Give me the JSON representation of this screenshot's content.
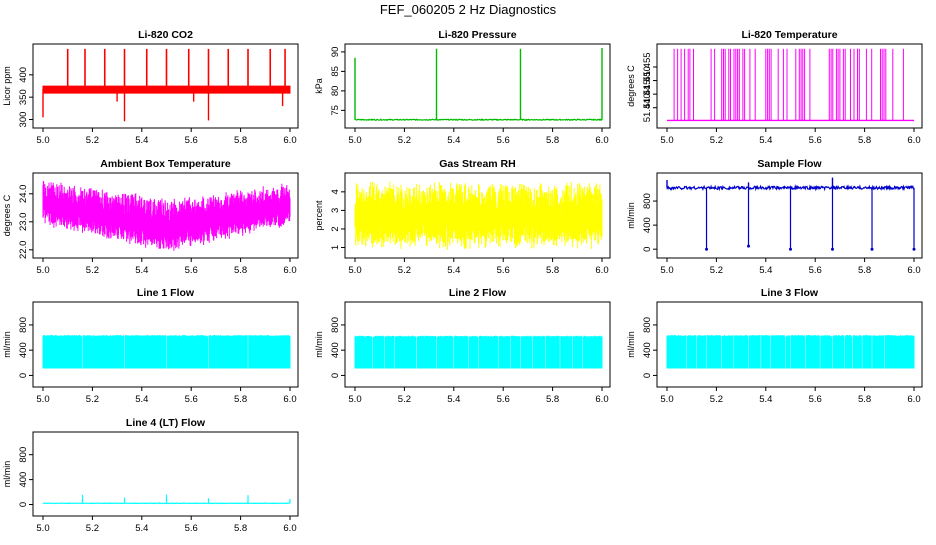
{
  "page": {
    "title": "FEF_060205  2 Hz Diagnostics"
  },
  "chart_data": [
    {
      "type": "line",
      "title": "Li-820 CO2",
      "ylabel": "Licor ppm",
      "color": "#ff0000",
      "xlim": [
        5.0,
        6.0
      ],
      "ylim": [
        290,
        460
      ],
      "xticks": [
        "5.0",
        "5.2",
        "5.4",
        "5.6",
        "5.8",
        "6.0"
      ],
      "yticks": [
        {
          "v": 300,
          "label": "300"
        },
        {
          "v": 350,
          "label": "350"
        },
        {
          "v": 400,
          "label": "400"
        }
      ],
      "series": [
        {
          "name": "CO2",
          "baseline": 368,
          "noise": 3,
          "band": [
            358,
            376
          ],
          "up_spikes": [
            5.1,
            5.17,
            5.25,
            5.33,
            5.42,
            5.5,
            5.59,
            5.67,
            5.75,
            5.83,
            5.92,
            5.98
          ],
          "up_peak": 458,
          "down_spikes": [
            {
              "x": 5.0,
              "v": 305
            },
            {
              "x": 5.33,
              "v": 296
            },
            {
              "x": 5.67,
              "v": 298
            },
            {
              "x": 5.97,
              "v": 330
            },
            {
              "x": 5.3,
              "v": 340
            },
            {
              "x": 5.61,
              "v": 340
            }
          ]
        }
      ]
    },
    {
      "type": "line",
      "title": "Li-820 Pressure",
      "ylabel": "kPa",
      "color": "#00bb00",
      "xlim": [
        5.0,
        6.0
      ],
      "ylim": [
        71.5,
        91
      ],
      "xticks": [
        "5.0",
        "5.2",
        "5.4",
        "5.6",
        "5.8",
        "6.0"
      ],
      "yticks": [
        {
          "v": 75,
          "label": "75"
        },
        {
          "v": 80,
          "label": "80"
        },
        {
          "v": 85,
          "label": "85"
        },
        {
          "v": 90,
          "label": "90"
        }
      ],
      "series": [
        {
          "name": "Pressure",
          "baseline": 72.6,
          "noise": 0.12,
          "up_spikes": [
            {
              "x": 5.0,
              "v": 88.5
            },
            {
              "x": 5.33,
              "v": 90.8
            },
            {
              "x": 5.67,
              "v": 90.8
            },
            {
              "x": 6.0,
              "v": 91
            }
          ]
        }
      ]
    },
    {
      "type": "line",
      "title": "Li-820 Temperature",
      "ylabel": "degrees C",
      "color": "#ff00ff",
      "xlim": [
        5.0,
        6.0
      ],
      "ylim": [
        51.434,
        51.462
      ],
      "xticks": [
        "5.0",
        "5.2",
        "5.4",
        "5.6",
        "5.8",
        "6.0"
      ],
      "yticks": [
        {
          "v": 51.44,
          "label": "51.440"
        },
        {
          "v": 51.445,
          "label": "51.445"
        },
        {
          "v": 51.45,
          "label": "51.450"
        },
        {
          "v": 51.455,
          "label": "51.455"
        }
      ],
      "series": [
        {
          "name": "Temperature",
          "low": 51.4353,
          "high": 51.4617
        }
      ]
    },
    {
      "type": "line",
      "title": "Ambient Box Temperature",
      "ylabel": "degrees C",
      "color": "#ff00ff",
      "xlim": [
        5.0,
        6.0
      ],
      "ylim": [
        21.85,
        24.6
      ],
      "xticks": [
        "5.0",
        "5.2",
        "5.4",
        "5.6",
        "5.8",
        "6.0"
      ],
      "yticks": [
        {
          "v": 22.0,
          "label": "22.0"
        },
        {
          "v": 23.0,
          "label": "23.0"
        },
        {
          "v": 24.0,
          "label": "24.0"
        }
      ],
      "series": [
        {
          "name": "Box temp",
          "upper_start": 24.5,
          "upper_mid": 23.75,
          "upper_end": 24.3,
          "lower_start": 23.0,
          "lower_mid": 22.0,
          "lower_end": 23.0
        }
      ]
    },
    {
      "type": "line",
      "title": "Gas Stream RH",
      "ylabel": "percent",
      "color": "#ffff00",
      "xlim": [
        5.0,
        6.0
      ],
      "ylim": [
        0.65,
        4.8
      ],
      "xticks": [
        "5.0",
        "5.2",
        "5.4",
        "5.6",
        "5.8",
        "6.0"
      ],
      "yticks": [
        {
          "v": 1,
          "label": "1"
        },
        {
          "v": 2,
          "label": "2"
        },
        {
          "v": 3,
          "label": "3"
        },
        {
          "v": 4,
          "label": "4"
        }
      ],
      "series": [
        {
          "name": "RH",
          "upper": 4.6,
          "lower": 0.8
        }
      ]
    },
    {
      "type": "line",
      "title": "Sample Flow",
      "ylabel": "ml/min",
      "color": "#0000cc",
      "xlim": [
        5.0,
        6.0
      ],
      "ylim": [
        -80,
        1200
      ],
      "xticks": [
        "5.0",
        "5.2",
        "5.4",
        "5.6",
        "5.8",
        "6.0"
      ],
      "yticks": [
        {
          "v": 0,
          "label": "0"
        },
        {
          "v": 400,
          "label": "400"
        },
        {
          "v": 800,
          "label": "800"
        }
      ],
      "series": [
        {
          "name": "Sample flow",
          "baseline": 1020,
          "noise": 25,
          "down_spikes": [
            {
              "x": 5.16,
              "v": 0
            },
            {
              "x": 5.33,
              "v": 50
            },
            {
              "x": 5.5,
              "v": 0
            },
            {
              "x": 5.67,
              "v": 0
            },
            {
              "x": 5.83,
              "v": 0
            },
            {
              "x": 6.0,
              "v": 0
            }
          ],
          "up_spikes": [
            {
              "x": 5.0,
              "v": 1150
            },
            {
              "x": 5.33,
              "v": 1110
            },
            {
              "x": 5.67,
              "v": 1190
            }
          ]
        }
      ]
    },
    {
      "type": "line",
      "title": "Line 1 Flow",
      "ylabel": "ml/min",
      "color": "#00ffff",
      "xlim": [
        5.0,
        6.0
      ],
      "ylim": [
        -120,
        1100
      ],
      "xticks": [
        "5.0",
        "5.2",
        "5.4",
        "5.6",
        "5.8",
        "6.0"
      ],
      "yticks": [
        {
          "v": 0,
          "label": "0"
        },
        {
          "v": 400,
          "label": "400"
        },
        {
          "v": 800,
          "label": "800"
        }
      ],
      "series": [
        {
          "name": "Line 1",
          "upper": 640,
          "lower": 110,
          "gaps": [
            5.16,
            5.33,
            5.5,
            5.67,
            5.83
          ]
        }
      ]
    },
    {
      "type": "line",
      "title": "Line 2 Flow",
      "ylabel": "ml/min",
      "color": "#00ffff",
      "xlim": [
        5.0,
        6.0
      ],
      "ylim": [
        -120,
        1100
      ],
      "xticks": [
        "5.0",
        "5.2",
        "5.4",
        "5.6",
        "5.8",
        "6.0"
      ],
      "yticks": [
        {
          "v": 0,
          "label": "0"
        },
        {
          "v": 400,
          "label": "400"
        },
        {
          "v": 800,
          "label": "800"
        }
      ],
      "series": [
        {
          "name": "Line 2",
          "upper": 630,
          "lower": 110,
          "gaps": [
            5.07,
            5.12,
            5.16,
            5.25,
            5.33,
            5.4,
            5.46,
            5.5,
            5.58,
            5.63,
            5.67,
            5.72,
            5.77,
            5.83,
            5.88,
            5.92
          ]
        }
      ]
    },
    {
      "type": "line",
      "title": "Line 3 Flow",
      "ylabel": "ml/min",
      "color": "#00ffff",
      "xlim": [
        5.0,
        6.0
      ],
      "ylim": [
        -120,
        1100
      ],
      "xticks": [
        "5.0",
        "5.2",
        "5.4",
        "5.6",
        "5.8",
        "6.0"
      ],
      "yticks": [
        {
          "v": 0,
          "label": "0"
        },
        {
          "v": 400,
          "label": "400"
        },
        {
          "v": 800,
          "label": "800"
        }
      ],
      "series": [
        {
          "name": "Line 3",
          "upper": 640,
          "lower": 110,
          "gaps": [
            5.08,
            5.12,
            5.16,
            5.22,
            5.27,
            5.33,
            5.38,
            5.42,
            5.48,
            5.5,
            5.56,
            5.62,
            5.67,
            5.72,
            5.75,
            5.79,
            5.83,
            5.88
          ]
        }
      ]
    },
    {
      "type": "line",
      "title": "Line 4 (LT) Flow",
      "ylabel": "ml/min",
      "color": "#00ffff",
      "xlim": [
        5.0,
        6.0
      ],
      "ylim": [
        -120,
        1100
      ],
      "xticks": [
        "5.0",
        "5.2",
        "5.4",
        "5.6",
        "5.8",
        "6.0"
      ],
      "yticks": [
        {
          "v": 0,
          "label": "0"
        },
        {
          "v": 400,
          "label": "400"
        },
        {
          "v": 800,
          "label": "800"
        }
      ],
      "series": [
        {
          "name": "Line 4",
          "baseline": 20,
          "noise": 4,
          "up_spikes": [
            {
              "x": 5.16,
              "v": 155
            },
            {
              "x": 5.33,
              "v": 110
            },
            {
              "x": 5.5,
              "v": 160
            },
            {
              "x": 5.67,
              "v": 100
            },
            {
              "x": 5.83,
              "v": 150
            },
            {
              "x": 6.0,
              "v": 90
            }
          ]
        }
      ]
    }
  ]
}
